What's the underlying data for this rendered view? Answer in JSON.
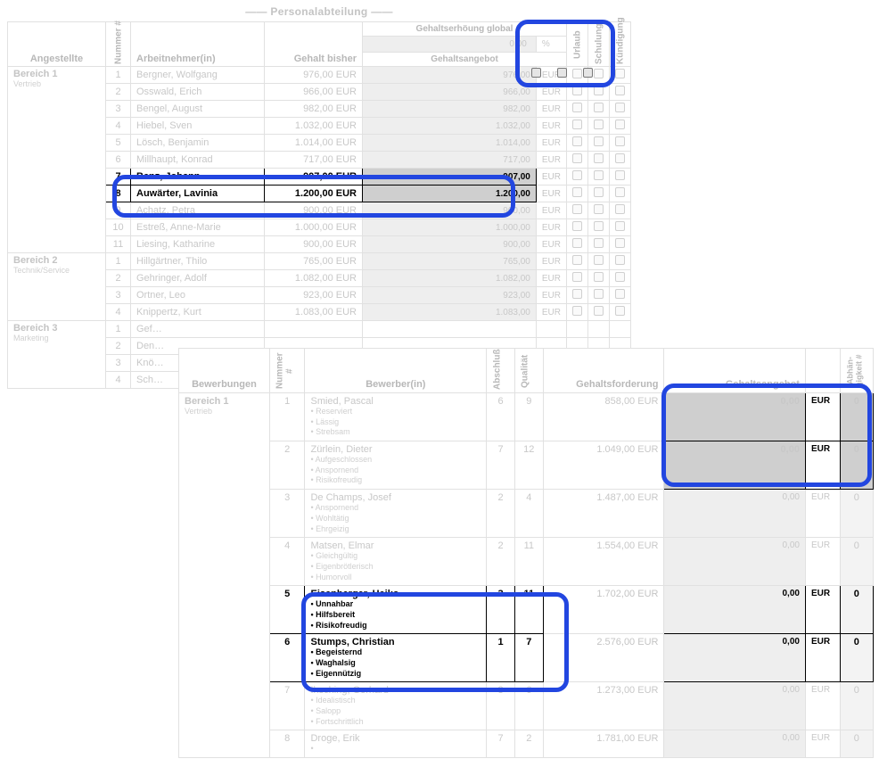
{
  "top": {
    "title": "—— Personalabteilung ——",
    "side_label": "Angestellte",
    "header": {
      "nummer": "Nummer #",
      "arbeitnehmer": "Arbeitnehmer(in)",
      "gehalt_bisher": "Gehalt bisher",
      "raise_label": "Gehaltserhöung global",
      "raise_value": "0,00",
      "raise_pct": "%",
      "gehaltsangebot": "Gehaltsangebot",
      "urlaub": "Urlaub",
      "schulung": "Schulung",
      "kuendigung": "Kündigung"
    },
    "areas": [
      {
        "title": "Bereich 1",
        "sub": "Vertrieb",
        "rows": [
          {
            "n": "1",
            "name": "Bergner, Wolfgang",
            "gehalt": "976,00 EUR",
            "offer": "976,00",
            "hl": false
          },
          {
            "n": "2",
            "name": "Osswald, Erich",
            "gehalt": "966,00 EUR",
            "offer": "966,00",
            "hl": false
          },
          {
            "n": "3",
            "name": "Bengel, August",
            "gehalt": "982,00 EUR",
            "offer": "982,00",
            "hl": false
          },
          {
            "n": "4",
            "name": "Hiebel, Sven",
            "gehalt": "1.032,00 EUR",
            "offer": "1.032,00",
            "hl": false
          },
          {
            "n": "5",
            "name": "Lösch, Benjamin",
            "gehalt": "1.014,00 EUR",
            "offer": "1.014,00",
            "hl": false
          },
          {
            "n": "6",
            "name": "Millhaupt, Konrad",
            "gehalt": "717,00 EUR",
            "offer": "717,00",
            "hl": false
          },
          {
            "n": "7",
            "name": "Benz, Johann",
            "gehalt": "907,00 EUR",
            "offer": "907,00",
            "hl": true
          },
          {
            "n": "8",
            "name": "Auwärter, Lavinia",
            "gehalt": "1.200,00 EUR",
            "offer": "1.200,00",
            "hl": true
          },
          {
            "n": "9",
            "name": "Achatz, Petra",
            "gehalt": "900,00 EUR",
            "offer": "900,00",
            "hl": false
          },
          {
            "n": "10",
            "name": "Estreß, Anne-Marie",
            "gehalt": "1.000,00 EUR",
            "offer": "1.000,00",
            "hl": false
          },
          {
            "n": "11",
            "name": "Liesing, Katharine",
            "gehalt": "900,00 EUR",
            "offer": "900,00",
            "hl": false
          }
        ]
      },
      {
        "title": "Bereich 2",
        "sub": "Technik/Service",
        "rows": [
          {
            "n": "1",
            "name": "Hillgärtner, Thilo",
            "gehalt": "765,00 EUR",
            "offer": "765,00",
            "hl": false
          },
          {
            "n": "2",
            "name": "Gehringer, Adolf",
            "gehalt": "1.082,00 EUR",
            "offer": "1.082,00",
            "hl": false
          },
          {
            "n": "3",
            "name": "Ortner, Leo",
            "gehalt": "923,00 EUR",
            "offer": "923,00",
            "hl": false
          },
          {
            "n": "4",
            "name": "Knippertz, Kurt",
            "gehalt": "1.083,00 EUR",
            "offer": "1.083,00",
            "hl": false
          }
        ]
      },
      {
        "title": "Bereich 3",
        "sub": "Marketing",
        "rows": [
          {
            "n": "1",
            "name": "Gef…",
            "gehalt": "",
            "offer": "",
            "hl": false
          },
          {
            "n": "2",
            "name": "Den…",
            "gehalt": "",
            "offer": "",
            "hl": false
          },
          {
            "n": "3",
            "name": "Knö…",
            "gehalt": "",
            "offer": "",
            "hl": false
          },
          {
            "n": "4",
            "name": "Sch…",
            "gehalt": "",
            "offer": "",
            "hl": false
          }
        ]
      }
    ],
    "eur": "EUR"
  },
  "bot": {
    "side_label": "Bewerbungen",
    "header": {
      "nummer": "Nummer #",
      "bewerber": "Bewerber(in)",
      "abschluss": "Abschluß",
      "qualitaet": "Qualität",
      "gehaltsforderung": "Gehaltsforderung",
      "gehaltsangebot": "Gehaltsangebot",
      "abh": "Abhän-\ngigkeit #"
    },
    "area": {
      "title": "Bereich 1",
      "sub": "Vertrieb"
    },
    "rows": [
      {
        "n": "1",
        "name": "Smied, Pascal",
        "traits": [
          "Reserviert",
          "Lässig",
          "Strebsam"
        ],
        "ab": "6",
        "q": "9",
        "ford": "858,00 EUR",
        "offer": "0,00",
        "dep": "0",
        "hl": false,
        "offer_hl": true
      },
      {
        "n": "2",
        "name": "Zürlein, Dieter",
        "traits": [
          "Aufgeschlossen",
          "Anspornend",
          "Risikofreudig"
        ],
        "ab": "7",
        "q": "12",
        "ford": "1.049,00 EUR",
        "offer": "0,00",
        "dep": "0",
        "hl": false,
        "offer_hl": true
      },
      {
        "n": "3",
        "name": "De Champs, Josef",
        "traits": [
          "Anspornend",
          "Wohltätig",
          "Ehrgeizig"
        ],
        "ab": "2",
        "q": "4",
        "ford": "1.487,00 EUR",
        "offer": "0,00",
        "dep": "0",
        "hl": false,
        "offer_hl": false
      },
      {
        "n": "4",
        "name": "Matsen, Elmar",
        "traits": [
          "Gleichgültig",
          "Eigenbrötlerisch",
          "Humorvoll"
        ],
        "ab": "2",
        "q": "11",
        "ford": "1.554,00 EUR",
        "offer": "0,00",
        "dep": "0",
        "hl": false,
        "offer_hl": false
      },
      {
        "n": "5",
        "name": "Eisenberger, Heiko",
        "traits": [
          "Unnahbar",
          "Hilfsbereit",
          "Risikofreudig"
        ],
        "ab": "3",
        "q": "11",
        "ford": "1.702,00 EUR",
        "offer": "0,00",
        "dep": "0",
        "hl": true,
        "offer_hl": false
      },
      {
        "n": "6",
        "name": "Stumps, Christian",
        "traits": [
          "Begeisternd",
          "Waghalsig",
          "Eigennützig"
        ],
        "ab": "1",
        "q": "7",
        "ford": "2.576,00 EUR",
        "offer": "0,00",
        "dep": "0",
        "hl": true,
        "offer_hl": false
      },
      {
        "n": "7",
        "name": "Ihsching, Gerhard",
        "traits": [
          "Idealistisch",
          "Salopp",
          "Fortschrittlich"
        ],
        "ab": "3",
        "q": "6",
        "ford": "1.273,00 EUR",
        "offer": "0,00",
        "dep": "0",
        "hl": false,
        "offer_hl": false
      },
      {
        "n": "8",
        "name": "Droge, Erik",
        "traits": [
          ""
        ],
        "ab": "7",
        "q": "2",
        "ford": "1.781,00 EUR",
        "offer": "0,00",
        "dep": "0",
        "hl": false,
        "offer_hl": false
      }
    ],
    "eur": "EUR"
  },
  "style": {
    "highlight_blue": "#2246e0",
    "faded_text": "#c4c4c4",
    "faded_border": "#e1e1e1",
    "offer_bg": "#eeeeee",
    "offer_hl_bg": "#cfcfcf",
    "black": "#000000"
  }
}
